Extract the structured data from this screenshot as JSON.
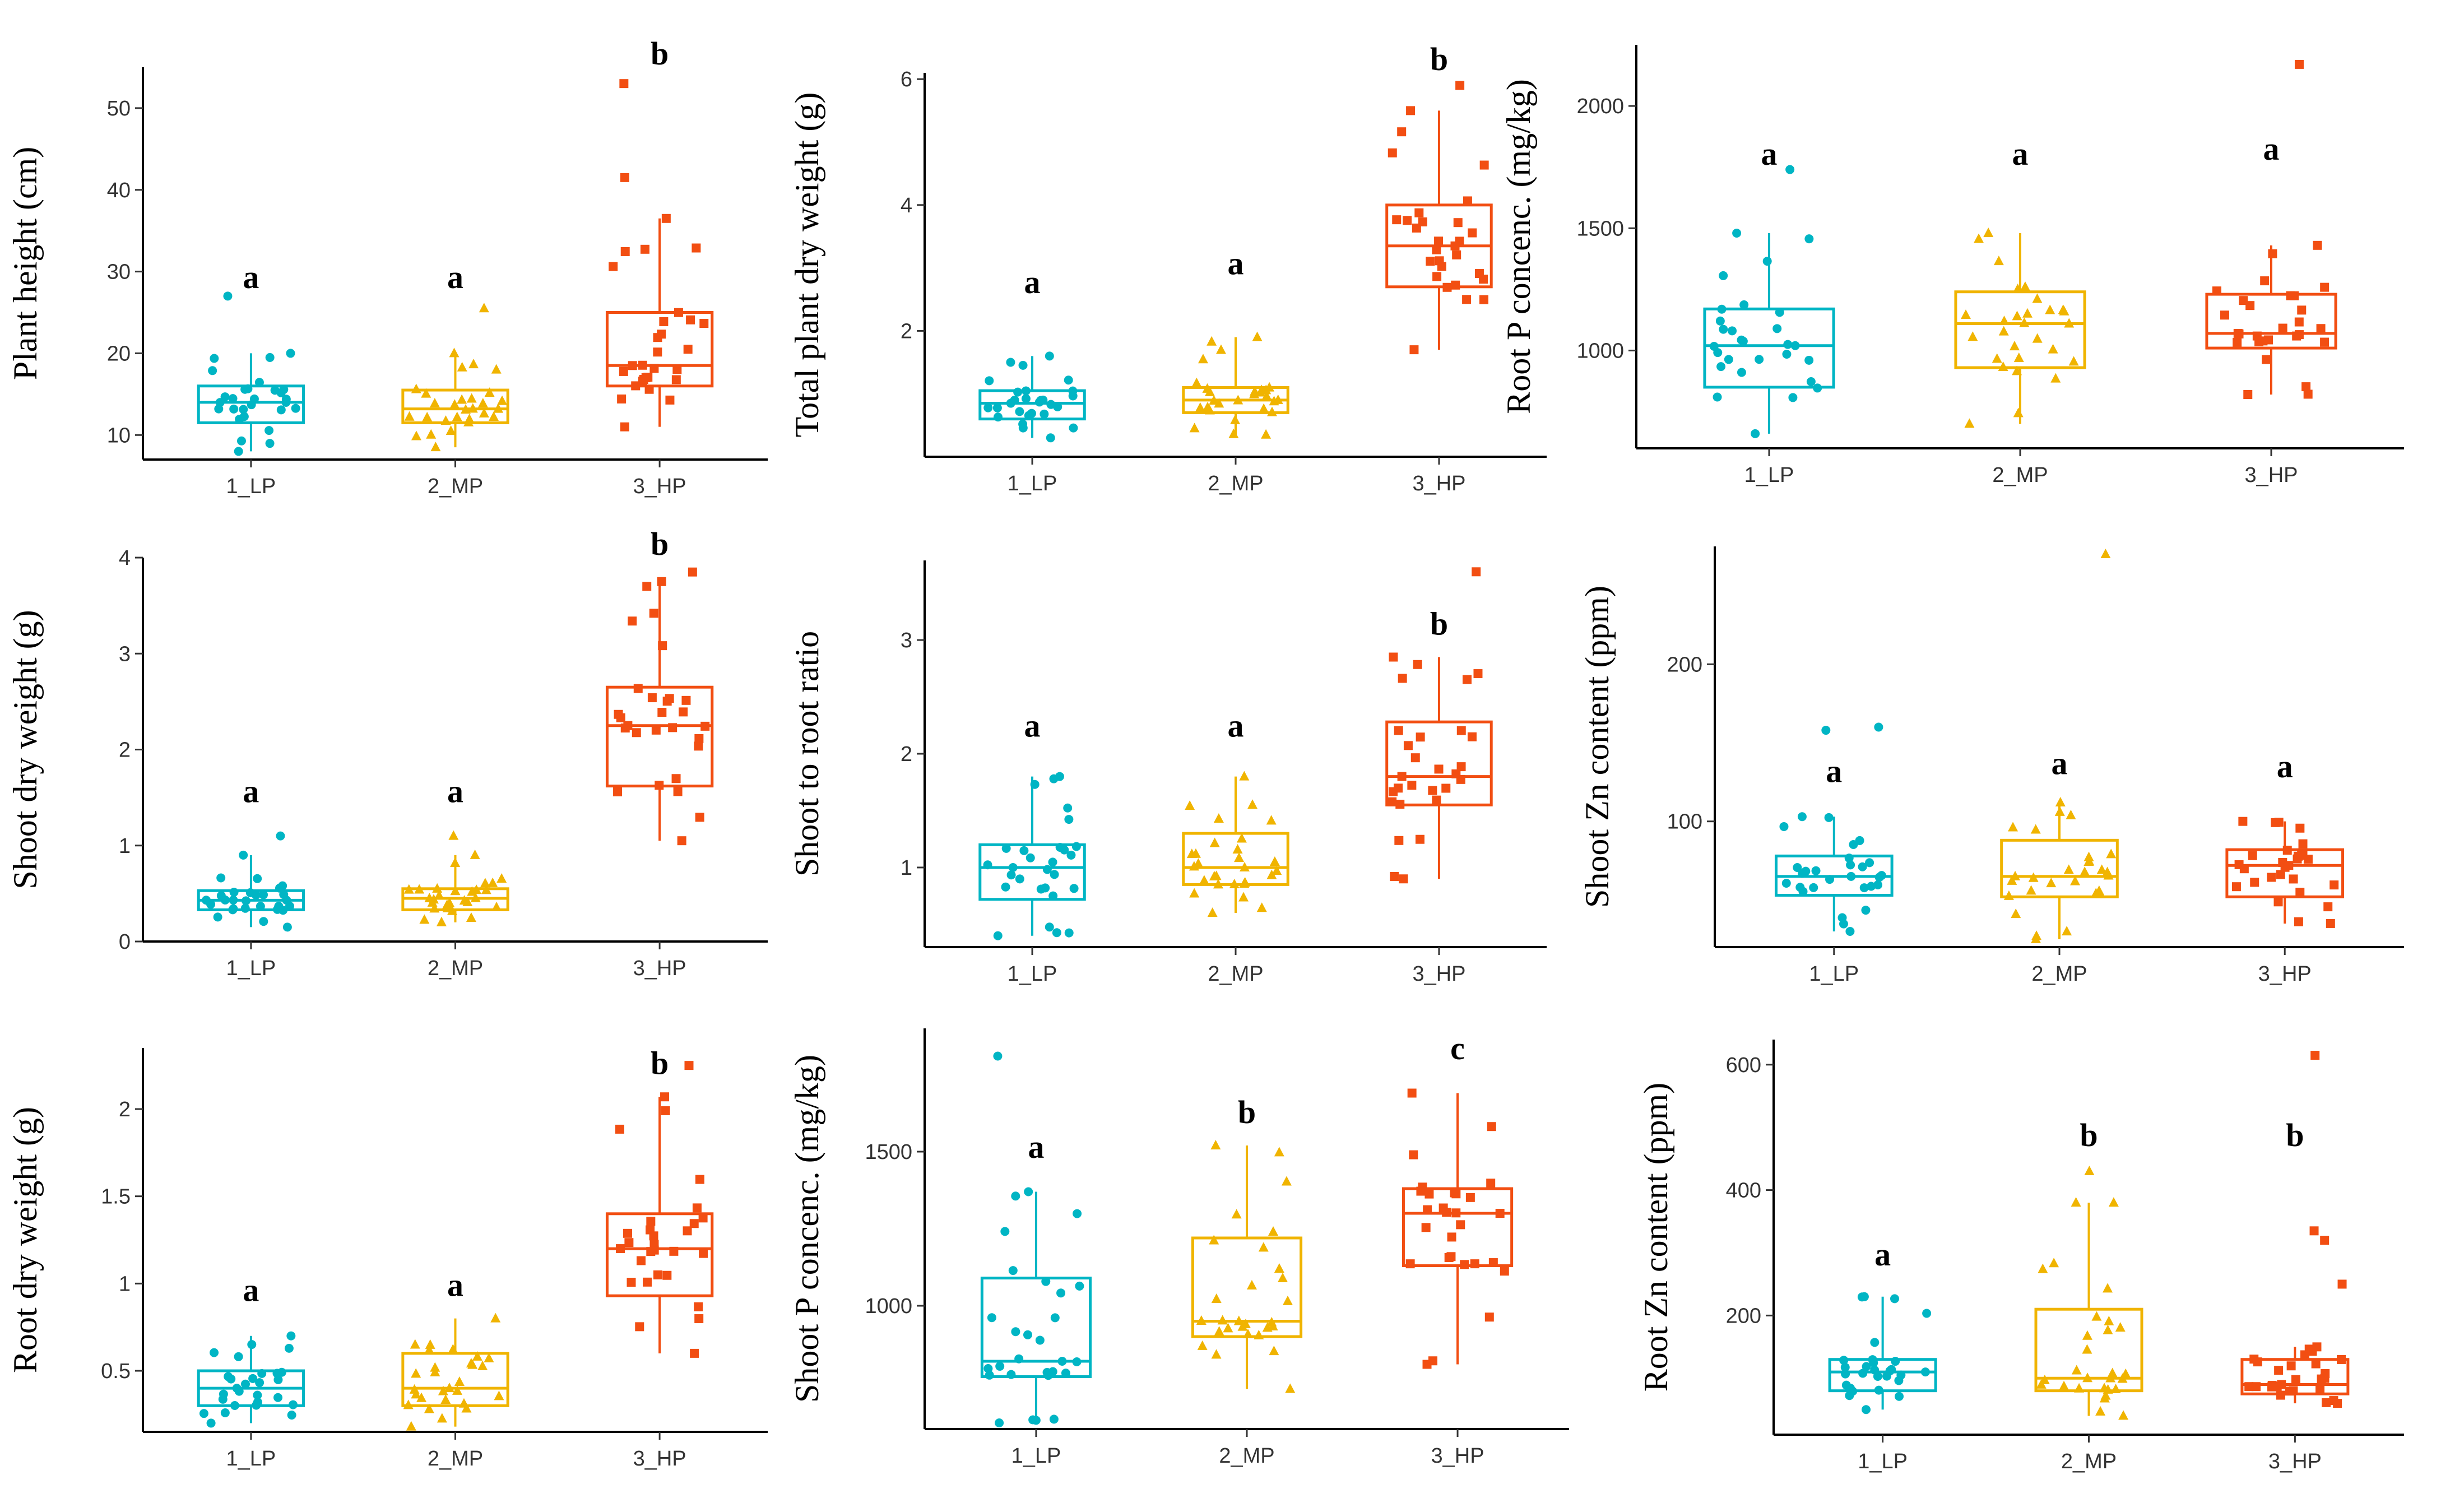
{
  "colors": {
    "LP": "#00b5c4",
    "MP": "#f0b400",
    "HP": "#f24e12",
    "axis": "#000000",
    "text": "#333333"
  },
  "groups": [
    "1_LP",
    "2_MP",
    "3_HP"
  ],
  "chart_data": [
    {
      "type": "box",
      "ylabel": "Plant height (cm)",
      "yticks": [
        10,
        20,
        30,
        40,
        50
      ],
      "ylim": [
        7,
        55
      ],
      "letters": [
        "a",
        "a",
        "b"
      ],
      "boxes": [
        {
          "group": "1_LP",
          "min": 8,
          "q1": 11.5,
          "median": 14,
          "q3": 16,
          "max": 20,
          "outliers": [
            27
          ],
          "letter_y": 28
        },
        {
          "group": "2_MP",
          "min": 8.5,
          "q1": 11.5,
          "median": 13.2,
          "q3": 15.5,
          "max": 20,
          "outliers": [
            25.5
          ],
          "letter_y": 28
        },
        {
          "group": "3_HP",
          "min": 11,
          "q1": 16,
          "median": 18.5,
          "q3": 25,
          "max": 36.5,
          "outliers": [
            41.5,
            53
          ],
          "letter_y": 57
        }
      ]
    },
    {
      "type": "box",
      "ylabel": "Total plant dry weight (g)",
      "yticks": [
        2,
        4,
        6
      ],
      "ylim": [
        0,
        6.1
      ],
      "letters": [
        "a",
        "a",
        "b"
      ],
      "boxes": [
        {
          "group": "1_LP",
          "min": 0.3,
          "q1": 0.6,
          "median": 0.85,
          "q3": 1.05,
          "max": 1.6,
          "outliers": [],
          "letter_y": 2.6
        },
        {
          "group": "2_MP",
          "min": 0.35,
          "q1": 0.7,
          "median": 0.9,
          "q3": 1.1,
          "max": 1.9,
          "outliers": [],
          "letter_y": 2.9
        },
        {
          "group": "3_HP",
          "min": 1.7,
          "q1": 2.7,
          "median": 3.35,
          "q3": 4.0,
          "max": 5.5,
          "outliers": [
            5.9
          ],
          "letter_y": 6.8
        }
      ]
    },
    {
      "type": "box",
      "ylabel": "Root P concenc. (mg/kg)",
      "yticks": [
        1000,
        1500,
        2000
      ],
      "ylim": [
        600,
        2250
      ],
      "letters": [
        "a",
        "a",
        "a"
      ],
      "boxes": [
        {
          "group": "1_LP",
          "min": 660,
          "q1": 850,
          "median": 1020,
          "q3": 1170,
          "max": 1480,
          "outliers": [
            1740
          ],
          "letter_y": 1760
        },
        {
          "group": "2_MP",
          "min": 700,
          "q1": 930,
          "median": 1110,
          "q3": 1240,
          "max": 1480,
          "outliers": [],
          "letter_y": 1760
        },
        {
          "group": "3_HP",
          "min": 820,
          "q1": 1010,
          "median": 1070,
          "q3": 1230,
          "max": 1430,
          "outliers": [
            2170
          ],
          "letter_y": 1780
        }
      ]
    },
    {
      "type": "box",
      "ylabel": "Shoot dry weight (g)",
      "yticks": [
        0,
        1,
        2,
        3,
        4
      ],
      "ylim": [
        0,
        4
      ],
      "letters": [
        "a",
        "a",
        "b"
      ],
      "boxes": [
        {
          "group": "1_LP",
          "min": 0.15,
          "q1": 0.33,
          "median": 0.43,
          "q3": 0.53,
          "max": 0.9,
          "outliers": [
            1.1
          ],
          "letter_y": 1.45
        },
        {
          "group": "2_MP",
          "min": 0.2,
          "q1": 0.33,
          "median": 0.45,
          "q3": 0.55,
          "max": 0.9,
          "outliers": [
            1.1
          ],
          "letter_y": 1.45
        },
        {
          "group": "3_HP",
          "min": 1.05,
          "q1": 1.62,
          "median": 2.25,
          "q3": 2.65,
          "max": 3.75,
          "outliers": [
            3.85
          ],
          "letter_y": 4.15
        }
      ]
    },
    {
      "type": "box",
      "ylabel": "Shoot to root ratio",
      "yticks": [
        1,
        2,
        3
      ],
      "ylim": [
        0.3,
        3.7
      ],
      "letters": [
        "a",
        "a",
        "b"
      ],
      "boxes": [
        {
          "group": "1_LP",
          "min": 0.4,
          "q1": 0.72,
          "median": 1.0,
          "q3": 1.2,
          "max": 1.8,
          "outliers": [],
          "letter_y": 2.15
        },
        {
          "group": "2_MP",
          "min": 0.6,
          "q1": 0.85,
          "median": 1.0,
          "q3": 1.3,
          "max": 1.8,
          "outliers": [],
          "letter_y": 2.15
        },
        {
          "group": "3_HP",
          "min": 0.9,
          "q1": 1.55,
          "median": 1.8,
          "q3": 2.28,
          "max": 2.85,
          "outliers": [
            3.6
          ],
          "letter_y": 2.65
        }
      ]
    },
    {
      "type": "box",
      "ylabel": "Shoot Zn content (ppm)",
      "yticks": [
        100,
        200
      ],
      "ylim": [
        20,
        275
      ],
      "letters": [
        "a",
        "a",
        "a"
      ],
      "boxes": [
        {
          "group": "1_LP",
          "min": 30,
          "q1": 53,
          "median": 65,
          "q3": 78,
          "max": 103,
          "outliers": [
            158,
            160
          ],
          "letter_y": 125
        },
        {
          "group": "2_MP",
          "min": 25,
          "q1": 52,
          "median": 65,
          "q3": 88,
          "max": 112,
          "outliers": [
            270
          ],
          "letter_y": 130
        },
        {
          "group": "3_HP",
          "min": 35,
          "q1": 52,
          "median": 72,
          "q3": 82,
          "max": 100,
          "outliers": [],
          "letter_y": 128
        }
      ]
    },
    {
      "type": "box",
      "ylabel": "Root dry weight (g)",
      "yticks": [
        0.5,
        1.0,
        1.5,
        2.0
      ],
      "ylim": [
        0.15,
        2.35
      ],
      "letters": [
        "a",
        "a",
        "b"
      ],
      "boxes": [
        {
          "group": "1_LP",
          "min": 0.2,
          "q1": 0.3,
          "median": 0.4,
          "q3": 0.5,
          "max": 0.7,
          "outliers": [],
          "letter_y": 0.9
        },
        {
          "group": "2_MP",
          "min": 0.18,
          "q1": 0.3,
          "median": 0.4,
          "q3": 0.6,
          "max": 0.8,
          "outliers": [],
          "letter_y": 0.9
        },
        {
          "group": "3_HP",
          "min": 0.6,
          "q1": 0.93,
          "median": 1.2,
          "q3": 1.4,
          "max": 2.07,
          "outliers": [
            2.25
          ],
          "letter_y": 2.2
        }
      ]
    },
    {
      "type": "box",
      "ylabel": "Shoot P concenc. (mg/kg)",
      "yticks": [
        1000,
        1500
      ],
      "ylim": [
        600,
        1900
      ],
      "letters": [
        "a",
        "b",
        "c"
      ],
      "boxes": [
        {
          "group": "1_LP",
          "min": 620,
          "q1": 770,
          "median": 820,
          "q3": 1090,
          "max": 1370,
          "outliers": [
            1810
          ],
          "letter_y": 1480
        },
        {
          "group": "2_MP",
          "min": 730,
          "q1": 900,
          "median": 950,
          "q3": 1220,
          "max": 1520,
          "outliers": [],
          "letter_y": 1580
        },
        {
          "group": "3_HP",
          "min": 810,
          "q1": 1130,
          "median": 1300,
          "q3": 1380,
          "max": 1690,
          "outliers": [],
          "letter_y": 1800
        }
      ]
    },
    {
      "type": "box",
      "ylabel": "Root Zn content (ppm)",
      "yticks": [
        200,
        400,
        600
      ],
      "ylim": [
        10,
        640
      ],
      "letters": [
        "a",
        "b",
        "b"
      ],
      "boxes": [
        {
          "group": "1_LP",
          "min": 50,
          "q1": 80,
          "median": 110,
          "q3": 130,
          "max": 230,
          "outliers": [],
          "letter_y": 280
        },
        {
          "group": "2_MP",
          "min": 40,
          "q1": 80,
          "median": 100,
          "q3": 210,
          "max": 380,
          "outliers": [
            430
          ],
          "letter_y": 470
        },
        {
          "group": "3_HP",
          "min": 60,
          "q1": 75,
          "median": 90,
          "q3": 130,
          "max": 150,
          "outliers": [
            250,
            320,
            335,
            615
          ],
          "letter_y": 470
        }
      ]
    }
  ]
}
